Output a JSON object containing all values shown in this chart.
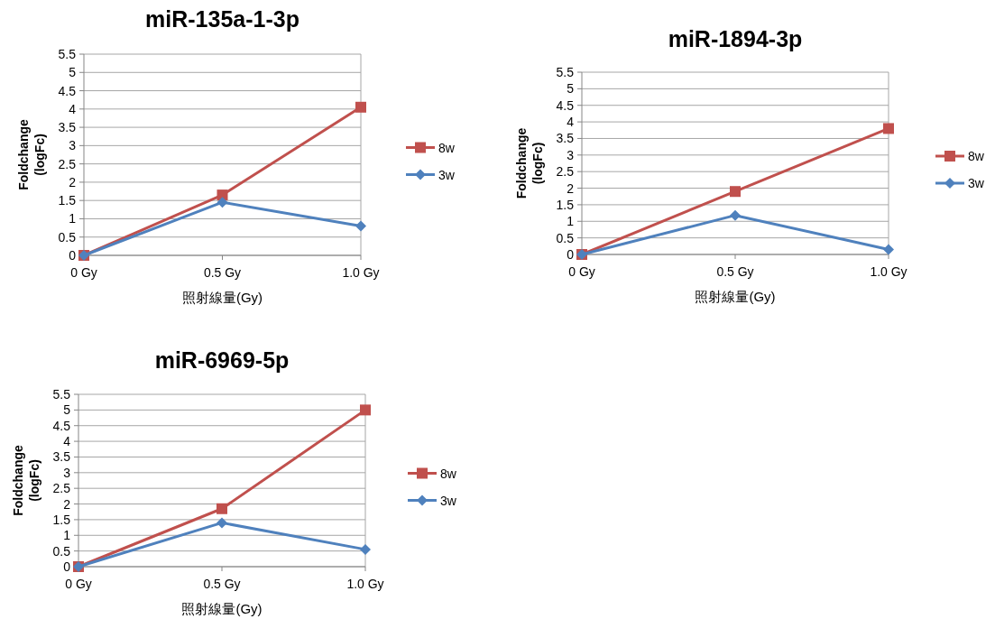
{
  "chart_data": [
    {
      "type": "line",
      "title": "miR-135a-1-3p",
      "xlabel": "照射線量(Gy)",
      "ylabel": "Foldchange (logFc)",
      "categories": [
        "0 Gy",
        "0.5 Gy",
        "1.0 Gy"
      ],
      "ylim": [
        0,
        5.5
      ],
      "yticks": [
        0,
        0.5,
        1,
        1.5,
        2,
        2.5,
        3,
        3.5,
        4,
        4.5,
        5,
        5.5
      ],
      "grid": "y",
      "legend": "right",
      "series": [
        {
          "name": "8w",
          "color": "#c0504d",
          "marker": "square",
          "values": [
            0,
            1.65,
            4.05
          ]
        },
        {
          "name": "3w",
          "color": "#4f81bd",
          "marker": "diamond",
          "values": [
            0,
            1.45,
            0.8
          ]
        }
      ]
    },
    {
      "type": "line",
      "title": "miR-1894-3p",
      "xlabel": "照射線量(Gy)",
      "ylabel": "Foldchange (logFc)",
      "categories": [
        "0 Gy",
        "0.5 Gy",
        "1.0 Gy"
      ],
      "ylim": [
        0,
        5.5
      ],
      "yticks": [
        0,
        0.5,
        1,
        1.5,
        2,
        2.5,
        3,
        3.5,
        4,
        4.5,
        5,
        5.5
      ],
      "grid": "y",
      "legend": "right",
      "series": [
        {
          "name": "8w",
          "color": "#c0504d",
          "marker": "square",
          "values": [
            0,
            1.9,
            3.8
          ]
        },
        {
          "name": "3w",
          "color": "#4f81bd",
          "marker": "diamond",
          "values": [
            0,
            1.18,
            0.15
          ]
        }
      ]
    },
    {
      "type": "line",
      "title": "miR-6969-5p",
      "xlabel": "照射線量(Gy)",
      "ylabel": "Foldchange (logFc)",
      "categories": [
        "0 Gy",
        "0.5 Gy",
        "1.0 Gy"
      ],
      "ylim": [
        0,
        5.5
      ],
      "yticks": [
        0,
        0.5,
        1,
        1.5,
        2,
        2.5,
        3,
        3.5,
        4,
        4.5,
        5,
        5.5
      ],
      "grid": "y",
      "legend": "right",
      "series": [
        {
          "name": "8w",
          "color": "#c0504d",
          "marker": "square",
          "values": [
            0,
            1.85,
            5.0
          ]
        },
        {
          "name": "3w",
          "color": "#4f81bd",
          "marker": "diamond",
          "values": [
            0,
            1.4,
            0.55
          ]
        }
      ]
    }
  ]
}
